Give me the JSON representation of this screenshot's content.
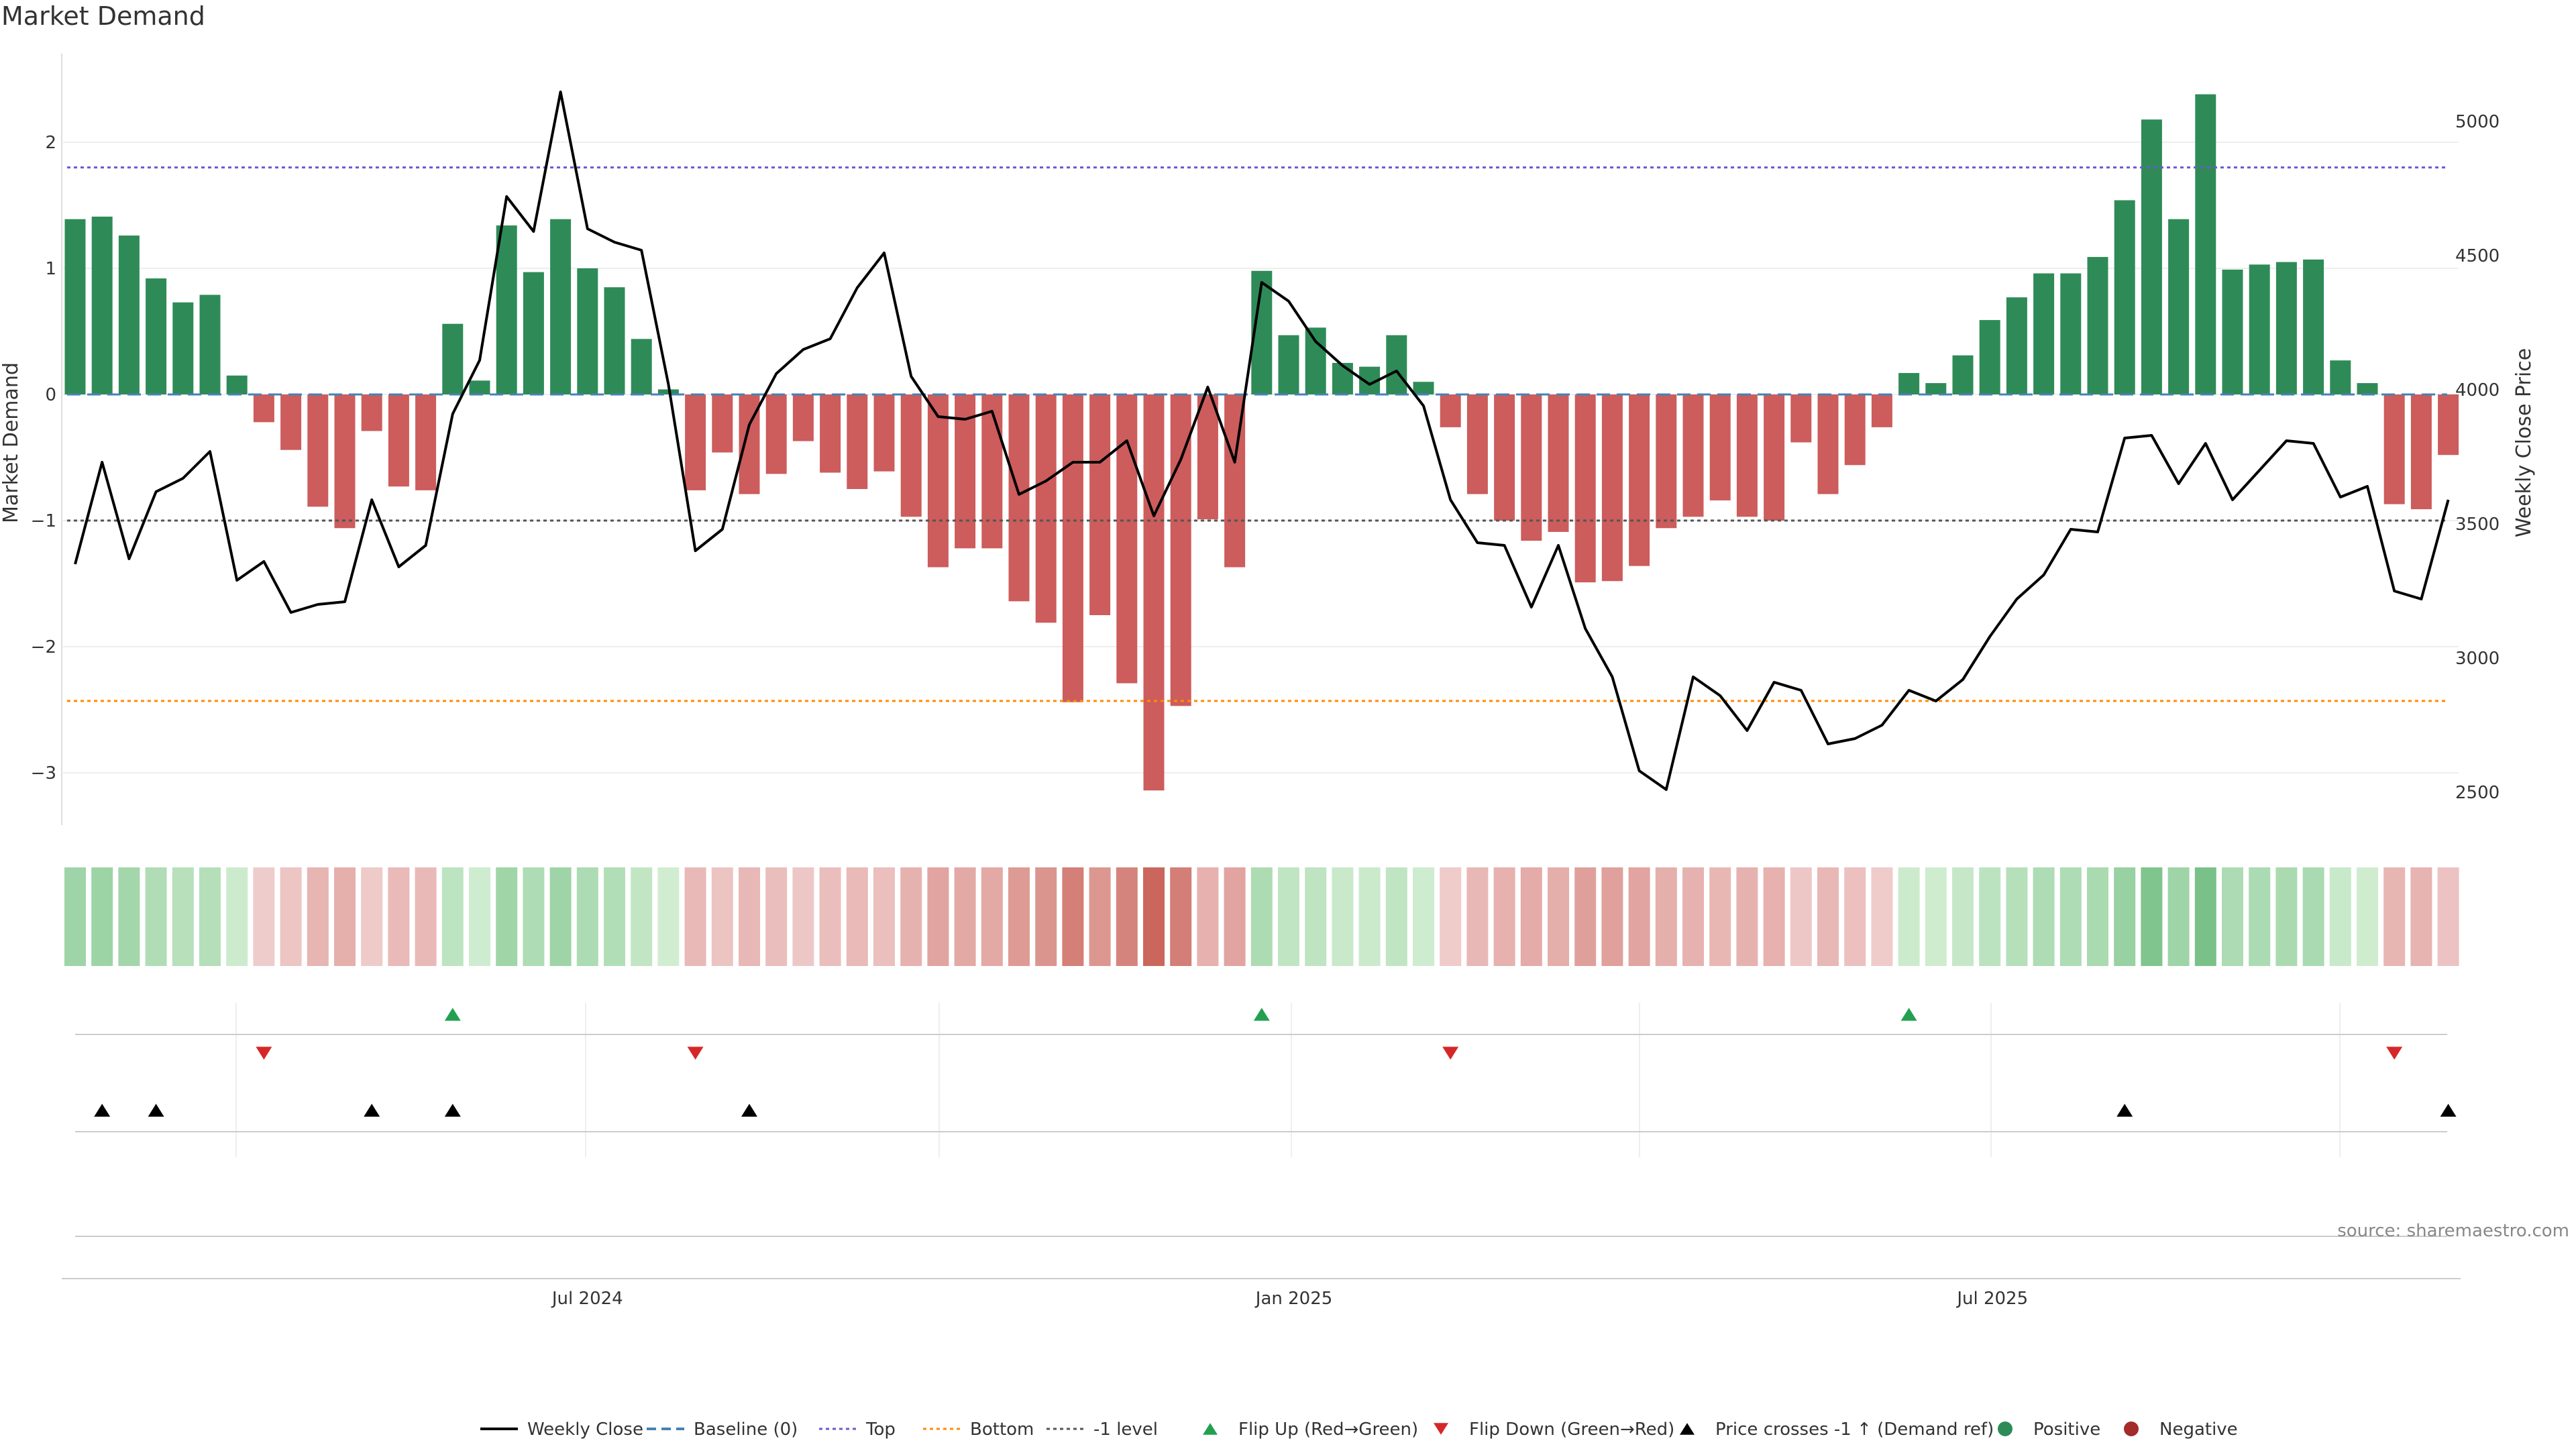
{
  "title": "Market Demand",
  "source": "source: sharemaestro.com",
  "colors": {
    "positive": "#2e8b57",
    "negative": "#cd5c5c",
    "top_line": "#6a5acd",
    "bottom_line": "#ff8c00",
    "baseline": "#4682b4",
    "price": "#000000",
    "flip_up": "#22a050",
    "flip_down": "#d62728"
  },
  "chart_data": {
    "type": "bar",
    "title": "Market Demand",
    "ylabel": "Market Demand",
    "ylabel_right": "Weekly Close Price",
    "ylim": [
      -3.4,
      2.7
    ],
    "ylim_right": [
      2400,
      5200
    ],
    "yticks": [
      2,
      1,
      0,
      -1,
      -2,
      -3
    ],
    "yticks_right": [
      5000,
      4500,
      4000,
      3500,
      3000,
      2500
    ],
    "x_ticks": [
      {
        "label": "Jul 2024",
        "index": 19
      },
      {
        "label": "Jan 2025",
        "index": 45.2
      },
      {
        "label": "Jul 2025",
        "index": 71.1
      }
    ],
    "reference_lines": {
      "top": 1.8,
      "bottom": -2.43,
      "minus_one": -1.0,
      "baseline": 0
    },
    "demand": [
      1.39,
      1.41,
      1.26,
      0.92,
      0.73,
      0.79,
      0.15,
      -0.22,
      -0.44,
      -0.89,
      -1.06,
      -0.29,
      -0.73,
      -0.76,
      0.56,
      0.11,
      1.34,
      0.97,
      1.39,
      1.0,
      0.85,
      0.44,
      0.04,
      -0.76,
      -0.46,
      -0.79,
      -0.63,
      -0.37,
      -0.62,
      -0.75,
      -0.61,
      -0.97,
      -1.37,
      -1.22,
      -1.22,
      -1.64,
      -1.81,
      -2.44,
      -1.75,
      -2.29,
      -3.14,
      -2.47,
      -0.99,
      -1.37,
      0.98,
      0.47,
      0.53,
      0.25,
      0.22,
      0.47,
      0.1,
      -0.26,
      -0.79,
      -1.0,
      -1.16,
      -1.09,
      -1.49,
      -1.48,
      -1.36,
      -1.06,
      -0.97,
      -0.84,
      -0.97,
      -1.0,
      -0.38,
      -0.79,
      -0.56,
      -0.26,
      0.17,
      0.09,
      0.31,
      0.59,
      0.77,
      0.96,
      0.96,
      1.09,
      1.54,
      2.18,
      1.39,
      2.38,
      0.99,
      1.03,
      1.05,
      1.07,
      0.27,
      0.09,
      -0.87,
      -0.91,
      -0.48
    ],
    "weekly_close": [
      3350,
      3730,
      3370,
      3620,
      3670,
      3770,
      3290,
      3360,
      3170,
      3200,
      3210,
      3590,
      3340,
      3420,
      3910,
      4110,
      4720,
      4590,
      5110,
      4600,
      4550,
      4520,
      4020,
      3400,
      3480,
      3870,
      4060,
      4150,
      4190,
      4380,
      4510,
      4050,
      3900,
      3890,
      3920,
      3610,
      3660,
      3730,
      3730,
      3810,
      3530,
      3740,
      4010,
      3730,
      4400,
      4330,
      4180,
      4090,
      4020,
      4070,
      3940,
      3590,
      3430,
      3420,
      3190,
      3420,
      3110,
      2930,
      2580,
      2510,
      2930,
      2860,
      2730,
      2910,
      2880,
      2680,
      2700,
      2750,
      2880,
      2840,
      2920,
      3080,
      3220,
      3310,
      3480,
      3470,
      3820,
      3830,
      3650,
      3800,
      3590,
      3700,
      3810,
      3800,
      3600,
      3640,
      3250,
      3220,
      3590
    ],
    "flip_up_indices": [
      14,
      44,
      68
    ],
    "flip_down_indices": [
      7,
      23,
      51,
      86
    ],
    "price_cross_indices": [
      1,
      3,
      11,
      14,
      25,
      76,
      88
    ],
    "legend": [
      {
        "label": "Weekly Close",
        "kind": "line",
        "color": "#000000"
      },
      {
        "label": "Baseline (0)",
        "kind": "dashed",
        "color": "#4682b4"
      },
      {
        "label": "Top",
        "kind": "dotted",
        "color": "#6a5acd"
      },
      {
        "label": "Bottom",
        "kind": "dotted",
        "color": "#ff8c00"
      },
      {
        "label": "-1 level",
        "kind": "dotted",
        "color": "#555555"
      },
      {
        "label": "Flip Up (Red→Green)",
        "kind": "tri-up",
        "color": "#22a050"
      },
      {
        "label": "Flip Down (Green→Red)",
        "kind": "tri-down",
        "color": "#d62728"
      },
      {
        "label": "Price crosses -1 ↑ (Demand ref)",
        "kind": "tri-up",
        "color": "#000000"
      },
      {
        "label": "Positive",
        "kind": "dot",
        "color": "#2e8b57"
      },
      {
        "label": "Negative",
        "kind": "dot",
        "color": "#a52a2a"
      }
    ]
  }
}
